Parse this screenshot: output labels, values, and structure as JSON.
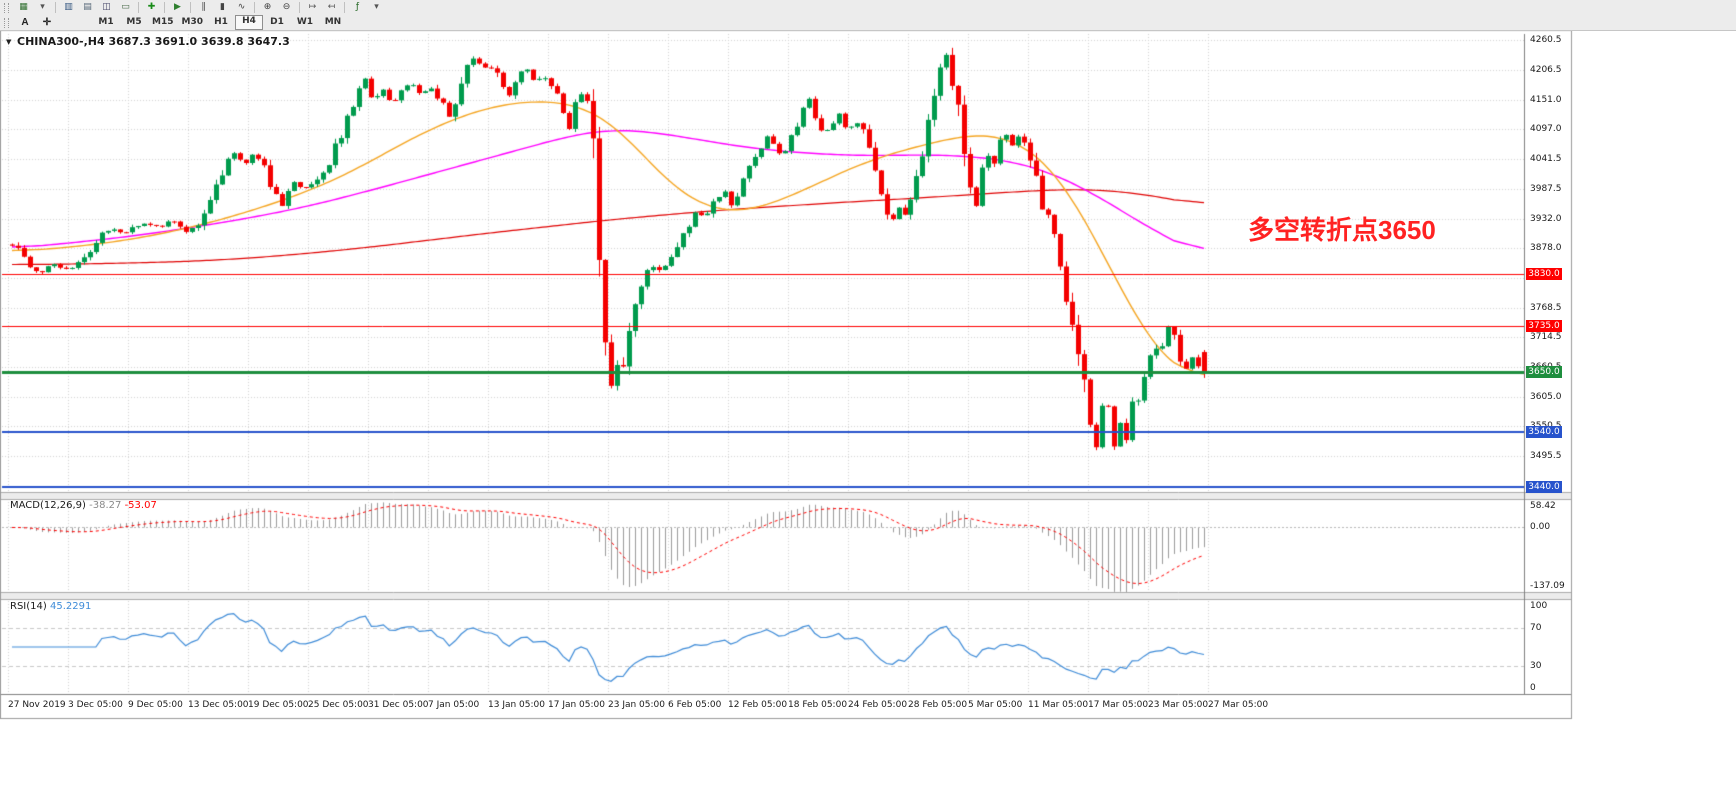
{
  "colors": {
    "up": "#009B4D",
    "down": "#F40000",
    "ma_slow": "#E00000",
    "ma_mid": "#FF00FF",
    "ma_fast": "#F5A623",
    "grid": "#D4D4D4",
    "macd_hist": "#9B9B9B",
    "macd_signal": "#FF0000",
    "rsi": "#3F8CD8",
    "hline_red": "#FF0000",
    "hline_green": "#1E8E3E",
    "hline_blue": "#2753CC",
    "annotation": "#FF2222"
  },
  "toolbar": {
    "text_tool": "A",
    "crosshair_glyph": "✛",
    "icons": [
      {
        "name": "new-chart-icon",
        "glyph": "▦",
        "color": "#2f6f2f"
      },
      {
        "name": "profiles-icon",
        "glyph": "▾",
        "color": "#555555"
      },
      {
        "name": "separator",
        "glyph": "",
        "color": ""
      },
      {
        "name": "market-watch-icon",
        "glyph": "▥",
        "color": "#33557f"
      },
      {
        "name": "data-window-icon",
        "glyph": "▤",
        "color": "#556677"
      },
      {
        "name": "navigator-icon",
        "glyph": "◫",
        "color": "#444466"
      },
      {
        "name": "terminal-icon",
        "glyph": "▭",
        "color": "#446644"
      },
      {
        "name": "separator",
        "glyph": "",
        "color": ""
      },
      {
        "name": "new-order-icon",
        "glyph": "✚",
        "color": "#188a18"
      },
      {
        "name": "separator",
        "glyph": "",
        "color": ""
      },
      {
        "name": "autotrading-icon",
        "glyph": "▶",
        "color": "#2f7f2f"
      },
      {
        "name": "separator",
        "glyph": "",
        "color": ""
      },
      {
        "name": "chart-bars-icon",
        "glyph": "∥",
        "color": "#444444"
      },
      {
        "name": "chart-candles-icon",
        "glyph": "▮",
        "color": "#444444"
      },
      {
        "name": "chart-line-icon",
        "glyph": "∿",
        "color": "#444444"
      },
      {
        "name": "separator",
        "glyph": "",
        "color": ""
      },
      {
        "name": "zoom-in-icon",
        "glyph": "⊕",
        "color": "#444444"
      },
      {
        "name": "zoom-out-icon",
        "glyph": "⊖",
        "color": "#444444"
      },
      {
        "name": "separator",
        "glyph": "",
        "color": ""
      },
      {
        "name": "auto-scroll-icon",
        "glyph": "↦",
        "color": "#555555"
      },
      {
        "name": "chart-shift-icon",
        "glyph": "↤",
        "color": "#555555"
      },
      {
        "name": "separator",
        "glyph": "",
        "color": ""
      },
      {
        "name": "indicators-icon",
        "glyph": "ƒ",
        "color": "#226622"
      },
      {
        "name": "templates-icon",
        "glyph": "▾",
        "color": "#555555"
      }
    ],
    "timeframes": [
      "M1",
      "M5",
      "M15",
      "M30",
      "H1",
      "H4",
      "D1",
      "W1",
      "MN"
    ],
    "active_timeframe": "H4"
  },
  "chart_window": {
    "caret_glyph": "▼",
    "title": "CHINA300-,H4 3687.3 3691.0 3639.8 3647.3",
    "annotation": "多空转折点3650",
    "price_axis_labels": [
      "4260.5",
      "4206.5",
      "4151.0",
      "4097.0",
      "4041.5",
      "3987.5",
      "3932.0",
      "3878.0",
      "3824.0",
      "3768.5",
      "3714.5",
      "3660.5",
      "3605.0",
      "3550.5",
      "3495.5",
      "3440.0"
    ],
    "time_axis_labels": [
      "27 Nov 2019",
      "3 Dec 05:00",
      "9 Dec 05:00",
      "13 Dec 05:00",
      "19 Dec 05:00",
      "25 Dec 05:00",
      "31 Dec 05:00",
      "7 Jan 05:00",
      "13 Jan 05:00",
      "17 Jan 05:00",
      "23 Jan 05:00",
      "6 Feb 05:00",
      "12 Feb 05:00",
      "18 Feb 05:00",
      "24 Feb 05:00",
      "28 Feb 05:00",
      "5 Mar 05:00",
      "11 Mar 05:00",
      "17 Mar 05:00",
      "23 Mar 05:00",
      "27 Mar 05:00"
    ],
    "hlines": [
      {
        "price": 3830.0,
        "label": "3830.0",
        "color": "red",
        "width": 1
      },
      {
        "price": 3735.0,
        "label": "3735.0",
        "color": "red",
        "width": 1
      },
      {
        "price": 3650.0,
        "label": "3650.0",
        "color": "green",
        "width": 3
      },
      {
        "price": 3540.0,
        "label": "3540.0",
        "color": "blue",
        "width": 2
      },
      {
        "price": 3440.0,
        "label": "3440.0",
        "color": "blue",
        "width": 2
      }
    ],
    "macd": {
      "name": "MACD(12,26,9)",
      "value_main": "-38.27",
      "value_signal": "-53.07",
      "axis_labels": [
        "58.42",
        "0.00",
        "-137.09"
      ],
      "max": 58.42,
      "min": -137.09
    },
    "rsi": {
      "name": "RSI(14)",
      "value": "45.2291",
      "axis_labels": [
        "100",
        "70",
        "30",
        "0"
      ],
      "levels": [
        70,
        30
      ]
    }
  },
  "chart_data": {
    "type": "candlestick",
    "symbol": "CHINA300-",
    "timeframe": "H4",
    "last_candle_ohlc": {
      "open": 3687.3,
      "high": 3691.0,
      "low": 3639.8,
      "close": 3647.3
    },
    "price_range": [
      3430,
      4272
    ],
    "num_candles": 200,
    "horizontal_levels": [
      3830,
      3735,
      3650,
      3540,
      3440
    ],
    "price_path_anchors": [
      [
        0.0,
        3885
      ],
      [
        0.01,
        3862
      ],
      [
        0.022,
        3830
      ],
      [
        0.035,
        3850
      ],
      [
        0.048,
        3838
      ],
      [
        0.06,
        3856
      ],
      [
        0.072,
        3900
      ],
      [
        0.082,
        3916
      ],
      [
        0.095,
        3908
      ],
      [
        0.11,
        3926
      ],
      [
        0.122,
        3916
      ],
      [
        0.135,
        3930
      ],
      [
        0.147,
        3906
      ],
      [
        0.157,
        3926
      ],
      [
        0.167,
        3968
      ],
      [
        0.177,
        4022
      ],
      [
        0.186,
        4056
      ],
      [
        0.194,
        4030
      ],
      [
        0.202,
        4052
      ],
      [
        0.21,
        4034
      ],
      [
        0.218,
        3988
      ],
      [
        0.226,
        3958
      ],
      [
        0.235,
        3996
      ],
      [
        0.245,
        3988
      ],
      [
        0.255,
        4002
      ],
      [
        0.265,
        4024
      ],
      [
        0.273,
        4072
      ],
      [
        0.281,
        4112
      ],
      [
        0.29,
        4162
      ],
      [
        0.296,
        4192
      ],
      [
        0.303,
        4150
      ],
      [
        0.311,
        4172
      ],
      [
        0.319,
        4146
      ],
      [
        0.327,
        4168
      ],
      [
        0.335,
        4186
      ],
      [
        0.343,
        4156
      ],
      [
        0.351,
        4176
      ],
      [
        0.359,
        4150
      ],
      [
        0.367,
        4122
      ],
      [
        0.375,
        4162
      ],
      [
        0.383,
        4216
      ],
      [
        0.389,
        4232
      ],
      [
        0.395,
        4200
      ],
      [
        0.401,
        4216
      ],
      [
        0.409,
        4186
      ],
      [
        0.416,
        4156
      ],
      [
        0.423,
        4192
      ],
      [
        0.431,
        4206
      ],
      [
        0.439,
        4186
      ],
      [
        0.446,
        4196
      ],
      [
        0.453,
        4176
      ],
      [
        0.461,
        4140
      ],
      [
        0.467,
        4092
      ],
      [
        0.472,
        4146
      ],
      [
        0.477,
        4160
      ],
      [
        0.483,
        4128
      ],
      [
        0.489,
        4030
      ],
      [
        0.493,
        3820
      ],
      [
        0.497,
        3690
      ],
      [
        0.501,
        3618
      ],
      [
        0.506,
        3662
      ],
      [
        0.511,
        3650
      ],
      [
        0.516,
        3722
      ],
      [
        0.522,
        3782
      ],
      [
        0.529,
        3822
      ],
      [
        0.537,
        3846
      ],
      [
        0.545,
        3830
      ],
      [
        0.552,
        3866
      ],
      [
        0.56,
        3896
      ],
      [
        0.567,
        3922
      ],
      [
        0.575,
        3946
      ],
      [
        0.582,
        3934
      ],
      [
        0.59,
        3966
      ],
      [
        0.597,
        3986
      ],
      [
        0.604,
        3956
      ],
      [
        0.612,
        4002
      ],
      [
        0.62,
        4032
      ],
      [
        0.627,
        4056
      ],
      [
        0.634,
        4086
      ],
      [
        0.64,
        4060
      ],
      [
        0.647,
        4046
      ],
      [
        0.654,
        4092
      ],
      [
        0.662,
        4126
      ],
      [
        0.669,
        4152
      ],
      [
        0.674,
        4110
      ],
      [
        0.68,
        4082
      ],
      [
        0.687,
        4106
      ],
      [
        0.694,
        4126
      ],
      [
        0.7,
        4096
      ],
      [
        0.707,
        4112
      ],
      [
        0.714,
        4100
      ],
      [
        0.72,
        4060
      ],
      [
        0.726,
        4014
      ],
      [
        0.732,
        3958
      ],
      [
        0.738,
        3926
      ],
      [
        0.744,
        3952
      ],
      [
        0.75,
        3936
      ],
      [
        0.756,
        3972
      ],
      [
        0.762,
        4042
      ],
      [
        0.768,
        4092
      ],
      [
        0.774,
        4152
      ],
      [
        0.779,
        4208
      ],
      [
        0.784,
        4232
      ],
      [
        0.789,
        4188
      ],
      [
        0.794,
        4128
      ],
      [
        0.799,
        4062
      ],
      [
        0.804,
        3988
      ],
      [
        0.809,
        3952
      ],
      [
        0.814,
        4032
      ],
      [
        0.819,
        4056
      ],
      [
        0.824,
        4026
      ],
      [
        0.829,
        4072
      ],
      [
        0.834,
        4092
      ],
      [
        0.84,
        4066
      ],
      [
        0.845,
        4086
      ],
      [
        0.85,
        4076
      ],
      [
        0.855,
        4042
      ],
      [
        0.86,
        3992
      ],
      [
        0.865,
        3932
      ],
      [
        0.87,
        3952
      ],
      [
        0.875,
        3902
      ],
      [
        0.88,
        3842
      ],
      [
        0.885,
        3782
      ],
      [
        0.889,
        3762
      ],
      [
        0.893,
        3702
      ],
      [
        0.897,
        3652
      ],
      [
        0.901,
        3602
      ],
      [
        0.905,
        3552
      ],
      [
        0.909,
        3502
      ],
      [
        0.913,
        3562
      ],
      [
        0.917,
        3632
      ],
      [
        0.921,
        3562
      ],
      [
        0.925,
        3522
      ],
      [
        0.929,
        3572
      ],
      [
        0.933,
        3492
      ],
      [
        0.937,
        3562
      ],
      [
        0.941,
        3622
      ],
      [
        0.945,
        3602
      ],
      [
        0.949,
        3646
      ],
      [
        0.953,
        3666
      ],
      [
        0.957,
        3682
      ],
      [
        0.961,
        3702
      ],
      [
        0.965,
        3692
      ],
      [
        0.969,
        3732
      ],
      [
        0.973,
        3742
      ],
      [
        0.977,
        3702
      ],
      [
        0.981,
        3652
      ],
      [
        0.985,
        3656
      ],
      [
        0.989,
        3682
      ],
      [
        0.993,
        3662
      ],
      [
        1.0,
        3647
      ]
    ],
    "ma_fast_anchors": [
      [
        0,
        3872
      ],
      [
        0.05,
        3880
      ],
      [
        0.1,
        3894
      ],
      [
        0.15,
        3916
      ],
      [
        0.2,
        3946
      ],
      [
        0.25,
        3984
      ],
      [
        0.29,
        4024
      ],
      [
        0.32,
        4062
      ],
      [
        0.35,
        4096
      ],
      [
        0.38,
        4124
      ],
      [
        0.41,
        4142
      ],
      [
        0.44,
        4150
      ],
      [
        0.47,
        4144
      ],
      [
        0.49,
        4128
      ],
      [
        0.51,
        4096
      ],
      [
        0.53,
        4048
      ],
      [
        0.55,
        4000
      ],
      [
        0.57,
        3966
      ],
      [
        0.59,
        3948
      ],
      [
        0.61,
        3944
      ],
      [
        0.63,
        3954
      ],
      [
        0.66,
        3980
      ],
      [
        0.69,
        4012
      ],
      [
        0.72,
        4040
      ],
      [
        0.75,
        4060
      ],
      [
        0.78,
        4076
      ],
      [
        0.8,
        4086
      ],
      [
        0.82,
        4088
      ],
      [
        0.84,
        4078
      ],
      [
        0.86,
        4052
      ],
      [
        0.88,
        4006
      ],
      [
        0.9,
        3932
      ],
      [
        0.92,
        3848
      ],
      [
        0.94,
        3762
      ],
      [
        0.955,
        3706
      ],
      [
        0.97,
        3666
      ],
      [
        0.985,
        3644
      ],
      [
        1.0,
        3640
      ]
    ],
    "ma_mid_anchors": [
      [
        0,
        3878
      ],
      [
        0.05,
        3888
      ],
      [
        0.1,
        3900
      ],
      [
        0.15,
        3916
      ],
      [
        0.2,
        3934
      ],
      [
        0.25,
        3956
      ],
      [
        0.3,
        3984
      ],
      [
        0.35,
        4014
      ],
      [
        0.4,
        4044
      ],
      [
        0.44,
        4068
      ],
      [
        0.47,
        4086
      ],
      [
        0.5,
        4096
      ],
      [
        0.53,
        4094
      ],
      [
        0.57,
        4080
      ],
      [
        0.62,
        4062
      ],
      [
        0.67,
        4052
      ],
      [
        0.72,
        4048
      ],
      [
        0.76,
        4050
      ],
      [
        0.8,
        4048
      ],
      [
        0.84,
        4038
      ],
      [
        0.87,
        4018
      ],
      [
        0.9,
        3988
      ],
      [
        0.93,
        3948
      ],
      [
        0.96,
        3908
      ],
      [
        1.0,
        3864
      ]
    ],
    "ma_slow_anchors": [
      [
        0,
        3848
      ],
      [
        0.05,
        3849
      ],
      [
        0.1,
        3851
      ],
      [
        0.15,
        3854
      ],
      [
        0.2,
        3860
      ],
      [
        0.25,
        3869
      ],
      [
        0.3,
        3880
      ],
      [
        0.35,
        3893
      ],
      [
        0.4,
        3906
      ],
      [
        0.45,
        3918
      ],
      [
        0.5,
        3930
      ],
      [
        0.55,
        3940
      ],
      [
        0.6,
        3949
      ],
      [
        0.65,
        3956
      ],
      [
        0.7,
        3963
      ],
      [
        0.75,
        3969
      ],
      [
        0.8,
        3976
      ],
      [
        0.85,
        3983
      ],
      [
        0.88,
        3986
      ],
      [
        0.91,
        3986
      ],
      [
        0.94,
        3980
      ],
      [
        0.97,
        3970
      ],
      [
        1.0,
        3956
      ]
    ]
  }
}
